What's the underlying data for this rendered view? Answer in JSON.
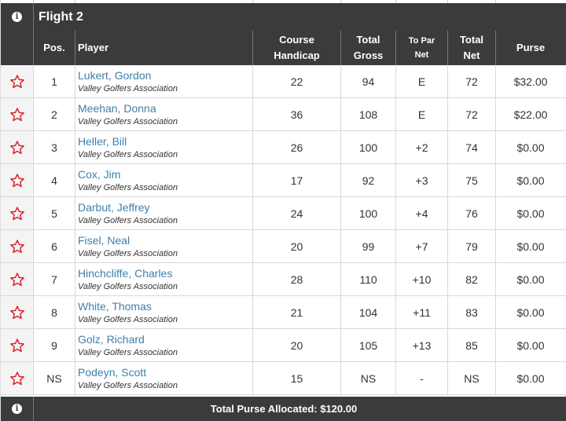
{
  "flight_title": "Flight 2",
  "info_icon": "info-icon",
  "headers": {
    "pos": "Pos.",
    "player": "Player",
    "course_handicap_1": "Course",
    "course_handicap_2": "Handicap",
    "total_gross_1": "Total",
    "total_gross_2": "Gross",
    "to_par_net_1": "To Par",
    "to_par_net_2": "Net",
    "total_net_1": "Total",
    "total_net_2": "Net",
    "purse": "Purse"
  },
  "rows": [
    {
      "pos": "1",
      "name": "Lukert, Gordon",
      "assoc": "Valley Golfers Association",
      "handicap": "22",
      "gross": "94",
      "to_par": "E",
      "net": "72",
      "purse": "$32.00"
    },
    {
      "pos": "2",
      "name": "Meehan, Donna",
      "assoc": "Valley Golfers Association",
      "handicap": "36",
      "gross": "108",
      "to_par": "E",
      "net": "72",
      "purse": "$22.00"
    },
    {
      "pos": "3",
      "name": "Heller, Bill",
      "assoc": "Valley Golfers Association",
      "handicap": "26",
      "gross": "100",
      "to_par": "+2",
      "net": "74",
      "purse": "$0.00"
    },
    {
      "pos": "4",
      "name": "Cox, Jim",
      "assoc": "Valley Golfers Association",
      "handicap": "17",
      "gross": "92",
      "to_par": "+3",
      "net": "75",
      "purse": "$0.00"
    },
    {
      "pos": "5",
      "name": "Darbut, Jeffrey",
      "assoc": "Valley Golfers Association",
      "handicap": "24",
      "gross": "100",
      "to_par": "+4",
      "net": "76",
      "purse": "$0.00"
    },
    {
      "pos": "6",
      "name": "Fisel, Neal",
      "assoc": "Valley Golfers Association",
      "handicap": "20",
      "gross": "99",
      "to_par": "+7",
      "net": "79",
      "purse": "$0.00"
    },
    {
      "pos": "7",
      "name": "Hinchcliffe, Charles",
      "assoc": "Valley Golfers Association",
      "handicap": "28",
      "gross": "110",
      "to_par": "+10",
      "net": "82",
      "purse": "$0.00"
    },
    {
      "pos": "8",
      "name": "White, Thomas",
      "assoc": "Valley Golfers Association",
      "handicap": "21",
      "gross": "104",
      "to_par": "+11",
      "net": "83",
      "purse": "$0.00"
    },
    {
      "pos": "9",
      "name": "Golz, Richard",
      "assoc": "Valley Golfers Association",
      "handicap": "20",
      "gross": "105",
      "to_par": "+13",
      "net": "85",
      "purse": "$0.00"
    },
    {
      "pos": "NS",
      "name": "Podeyn, Scott",
      "assoc": "Valley Golfers Association",
      "handicap": "15",
      "gross": "NS",
      "to_par": "-",
      "net": "NS",
      "purse": "$0.00"
    }
  ],
  "footer": {
    "total_purse": "Total Purse Allocated: $120.00"
  },
  "colors": {
    "header_bg": "#3b3b3d",
    "link": "#3f7fa8",
    "even_green": "#2e9b2e",
    "over_purple": "#7b2fa0",
    "star_red": "#d9232d"
  }
}
